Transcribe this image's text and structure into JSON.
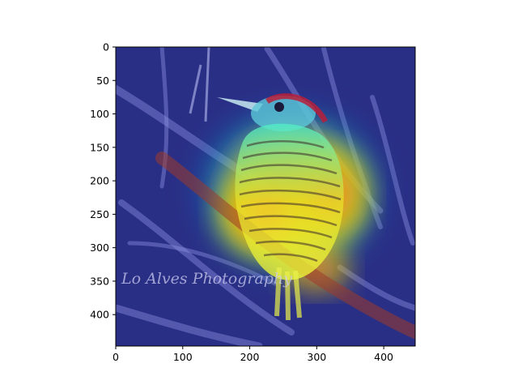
{
  "chart_data": {
    "type": "heatmap",
    "title": "",
    "xlabel": "",
    "ylabel": "",
    "xlim": [
      0,
      447
    ],
    "ylim": [
      447,
      0
    ],
    "x_ticks": [
      0,
      100,
      200,
      300,
      400
    ],
    "y_ticks": [
      0,
      50,
      100,
      150,
      200,
      250,
      300,
      350,
      400
    ],
    "colormap": "jet",
    "grid": false,
    "legend": "none",
    "background_image": "woodpecker-on-branch-photo",
    "watermark_text": "Lo Alves Photography",
    "heat_regions": [
      {
        "x": 260,
        "y": 215,
        "rx": 160,
        "ry": 145,
        "level": 0.45
      },
      {
        "x": 265,
        "y": 220,
        "rx": 120,
        "ry": 115,
        "level": 0.65
      },
      {
        "x": 225,
        "y": 250,
        "rx": 85,
        "ry": 75,
        "level": 0.9
      },
      {
        "x": 320,
        "y": 220,
        "rx": 70,
        "ry": 80,
        "level": 0.75
      },
      {
        "x": 300,
        "y": 330,
        "rx": 60,
        "ry": 45,
        "level": 0.7
      }
    ],
    "colors": {
      "low": "#2b2f8c",
      "mid": "#00d4ff",
      "high_mid": "#d8e000",
      "high": "#ff5a3c"
    }
  }
}
